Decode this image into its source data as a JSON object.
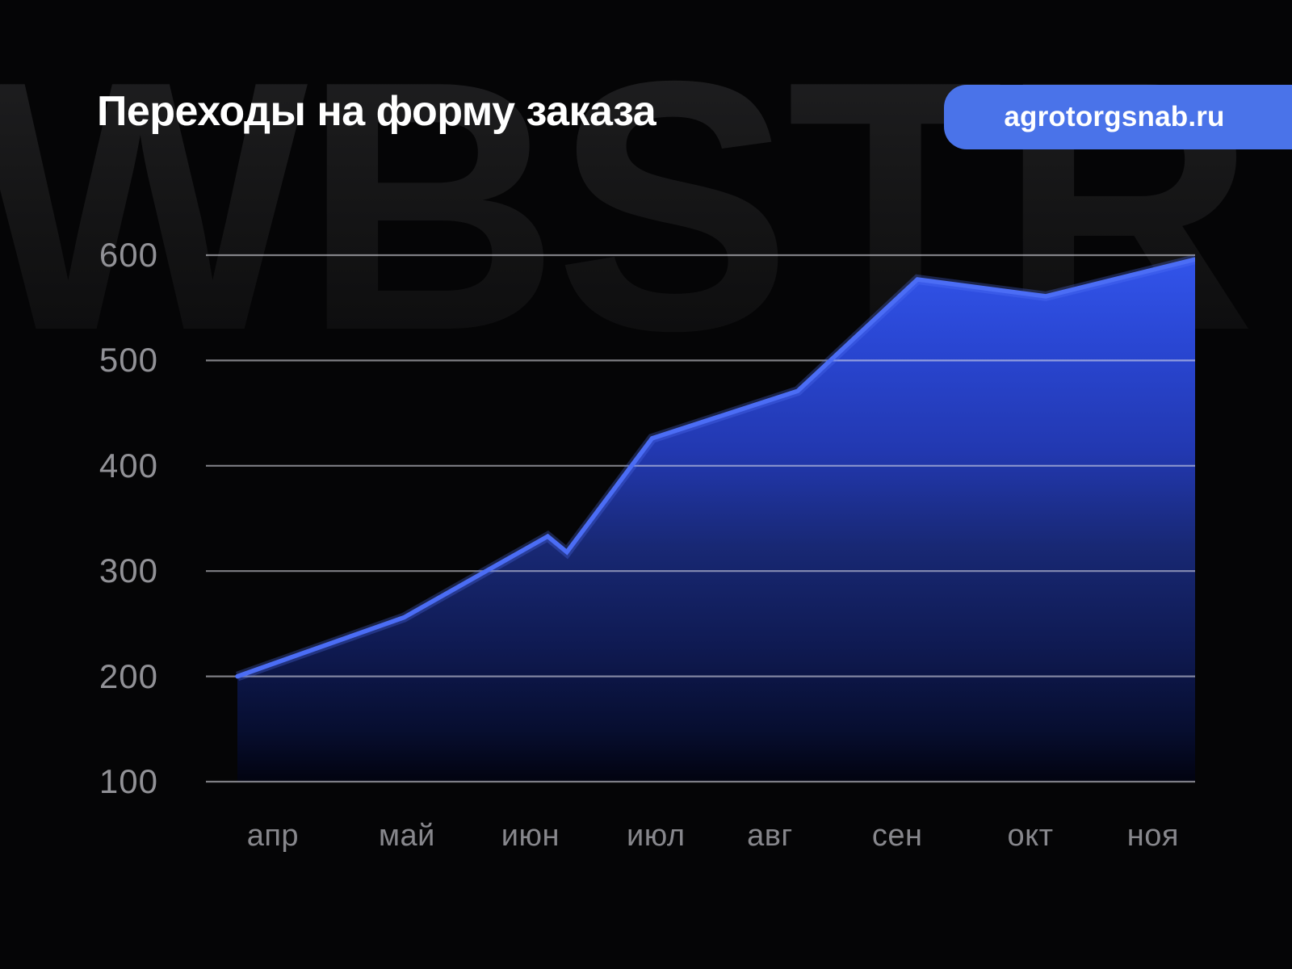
{
  "header": {
    "title": "Переходы на форму заказа",
    "badge_url": "agrotorgsnab.ru"
  },
  "watermark_text": "WBSTR",
  "colors": {
    "background": "#050506",
    "accent_line": "#4b6df5",
    "line_glow": "rgba(86,118,250,0.28)",
    "badge_background": "#4a73e9",
    "grid_line": "rgba(228,228,236,0.55)",
    "axis_text": "#919196",
    "month_text": "#87878c",
    "area_gradient_top": "#3254ea",
    "area_gradient_bottom": "#020310"
  },
  "chart_data": {
    "type": "area",
    "title": "Переходы на форму заказа",
    "categories": [
      "апр",
      "май",
      "июн",
      "июл",
      "авг",
      "сен",
      "окт",
      "ноя"
    ],
    "values": [
      200,
      255,
      325,
      425,
      470,
      575,
      560,
      595
    ],
    "y_ticks": [
      600,
      500,
      400,
      300,
      200,
      100
    ],
    "ylim": [
      100,
      625
    ],
    "baseline": 100,
    "xlabel": "",
    "ylabel": "",
    "legend": "none",
    "grid": "horizontal",
    "polyline": [
      {
        "t": 0.0,
        "v": 200
      },
      {
        "t": 0.174,
        "v": 256
      },
      {
        "t": 0.324,
        "v": 333
      },
      {
        "t": 0.344,
        "v": 318
      },
      {
        "t": 0.433,
        "v": 426
      },
      {
        "t": 0.585,
        "v": 471
      },
      {
        "t": 0.71,
        "v": 577
      },
      {
        "t": 0.844,
        "v": 561
      },
      {
        "t": 1.0,
        "v": 596
      }
    ],
    "category_positions_t": [
      0.037,
      0.177,
      0.306,
      0.437,
      0.556,
      0.689,
      0.828,
      0.956
    ]
  }
}
